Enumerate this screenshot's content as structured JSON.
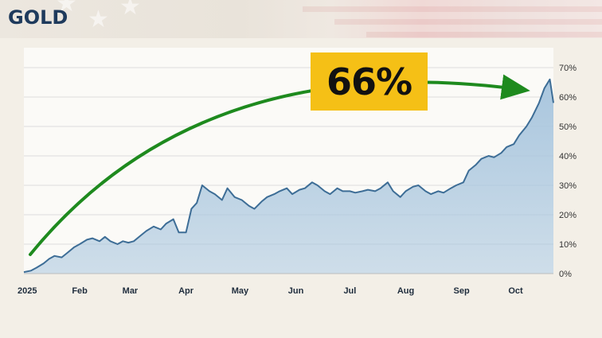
{
  "header": {
    "title": "GOLD"
  },
  "badge": {
    "text": "66%"
  },
  "colors": {
    "line": "#3d6d96",
    "area": "#a9c6de",
    "arrow": "#1e8a1e",
    "badge": "#f5c016",
    "title": "#1e3a5c"
  },
  "chart_data": {
    "type": "area",
    "title": "GOLD",
    "xlabel": "",
    "ylabel": "",
    "x_ticks": [
      "2025",
      "Feb",
      "Mar",
      "Apr",
      "May",
      "Jun",
      "Jul",
      "Aug",
      "Sep",
      "Oct"
    ],
    "y_ticks": [
      "0%",
      "10%",
      "20%",
      "30%",
      "40%",
      "50%",
      "60%",
      "70%"
    ],
    "ylim": [
      0,
      70
    ],
    "y_axis_side": "right",
    "grid": "horizontal",
    "annotation": {
      "text": "66%",
      "type": "arrow from start to peak"
    },
    "series": [
      {
        "x": [
          "2025-01-01",
          "2025-01-05",
          "2025-01-08",
          "2025-01-12",
          "2025-01-15",
          "2025-01-18",
          "2025-01-22",
          "2025-01-25",
          "2025-01-29",
          "2025-02-01",
          "2025-02-05",
          "2025-02-08",
          "2025-02-12",
          "2025-02-15",
          "2025-02-18",
          "2025-02-22",
          "2025-02-25",
          "2025-02-28",
          "2025-03-03",
          "2025-03-07",
          "2025-03-10",
          "2025-03-14",
          "2025-03-18",
          "2025-03-21",
          "2025-03-25",
          "2025-03-28",
          "2025-04-01",
          "2025-04-04",
          "2025-04-07",
          "2025-04-10",
          "2025-04-14",
          "2025-04-17",
          "2025-04-21",
          "2025-04-24",
          "2025-04-28",
          "2025-05-02",
          "2025-05-06",
          "2025-05-09",
          "2025-05-13",
          "2025-05-16",
          "2025-05-20",
          "2025-05-23",
          "2025-05-27",
          "2025-05-30",
          "2025-06-03",
          "2025-06-06",
          "2025-06-10",
          "2025-06-13",
          "2025-06-17",
          "2025-06-20",
          "2025-06-24",
          "2025-06-27",
          "2025-07-01",
          "2025-07-04",
          "2025-07-08",
          "2025-07-11",
          "2025-07-15",
          "2025-07-18",
          "2025-07-22",
          "2025-07-25",
          "2025-07-29",
          "2025-08-01",
          "2025-08-05",
          "2025-08-08",
          "2025-08-12",
          "2025-08-15",
          "2025-08-19",
          "2025-08-22",
          "2025-08-26",
          "2025-08-29",
          "2025-09-02",
          "2025-09-05",
          "2025-09-09",
          "2025-09-12",
          "2025-09-16",
          "2025-09-19",
          "2025-09-23",
          "2025-09-26",
          "2025-09-30",
          "2025-10-03",
          "2025-10-07",
          "2025-10-10",
          "2025-10-14",
          "2025-10-17",
          "2025-10-20",
          "2025-10-22"
        ],
        "values": [
          0.5,
          1,
          2,
          3.5,
          5,
          6,
          5.5,
          7,
          9,
          10,
          11.5,
          12,
          11,
          12.5,
          11,
          10,
          11,
          10.5,
          11,
          13,
          14.5,
          16,
          15,
          17,
          18.5,
          14,
          14,
          22,
          24,
          30,
          28,
          27,
          25,
          29,
          26,
          25,
          23,
          22,
          24.5,
          26,
          27,
          28,
          29,
          27,
          28.5,
          29,
          31,
          30,
          28,
          27,
          29,
          28,
          28,
          27.5,
          28,
          28.5,
          28,
          29,
          31,
          28,
          26,
          28,
          29.5,
          30,
          28,
          27,
          28,
          27.5,
          29,
          30,
          31,
          35,
          37,
          39,
          40,
          39.5,
          41,
          43,
          44,
          47,
          50,
          53,
          58,
          63,
          66,
          58
        ]
      }
    ]
  }
}
